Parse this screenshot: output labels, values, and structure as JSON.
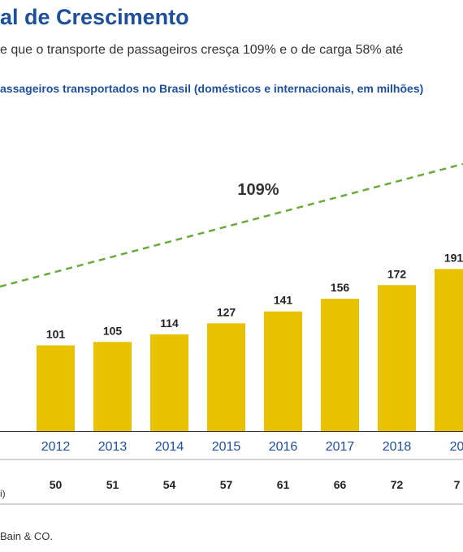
{
  "header": {
    "title": "al de Crescimento",
    "subtitle": "e que o transporte de passageiros cresça 109% e o de carga 58% até",
    "chart_heading": "assageiros transportados no Brasil (domésticos e internacionais, em milhões)"
  },
  "footer": {
    "source": "Bain & CO."
  },
  "colors": {
    "bar": "#e8c200",
    "trend": "#6aaa3a",
    "axis_text": "#1e4f9b",
    "value_text": "#222222"
  },
  "chart_data": {
    "type": "bar",
    "categories": [
      "2012",
      "2013",
      "2014",
      "2015",
      "2016",
      "2017",
      "2018",
      "20"
    ],
    "series": [
      {
        "values": [
          101,
          105,
          114,
          127,
          141,
          156,
          172,
          191
        ]
      }
    ],
    "trend": {
      "label": "109%",
      "style": "dashed",
      "color": "#6aaa3a"
    },
    "secondary_row": {
      "label": "i)",
      "values": [
        "50",
        "51",
        "54",
        "57",
        "61",
        "66",
        "72",
        "7"
      ]
    }
  }
}
